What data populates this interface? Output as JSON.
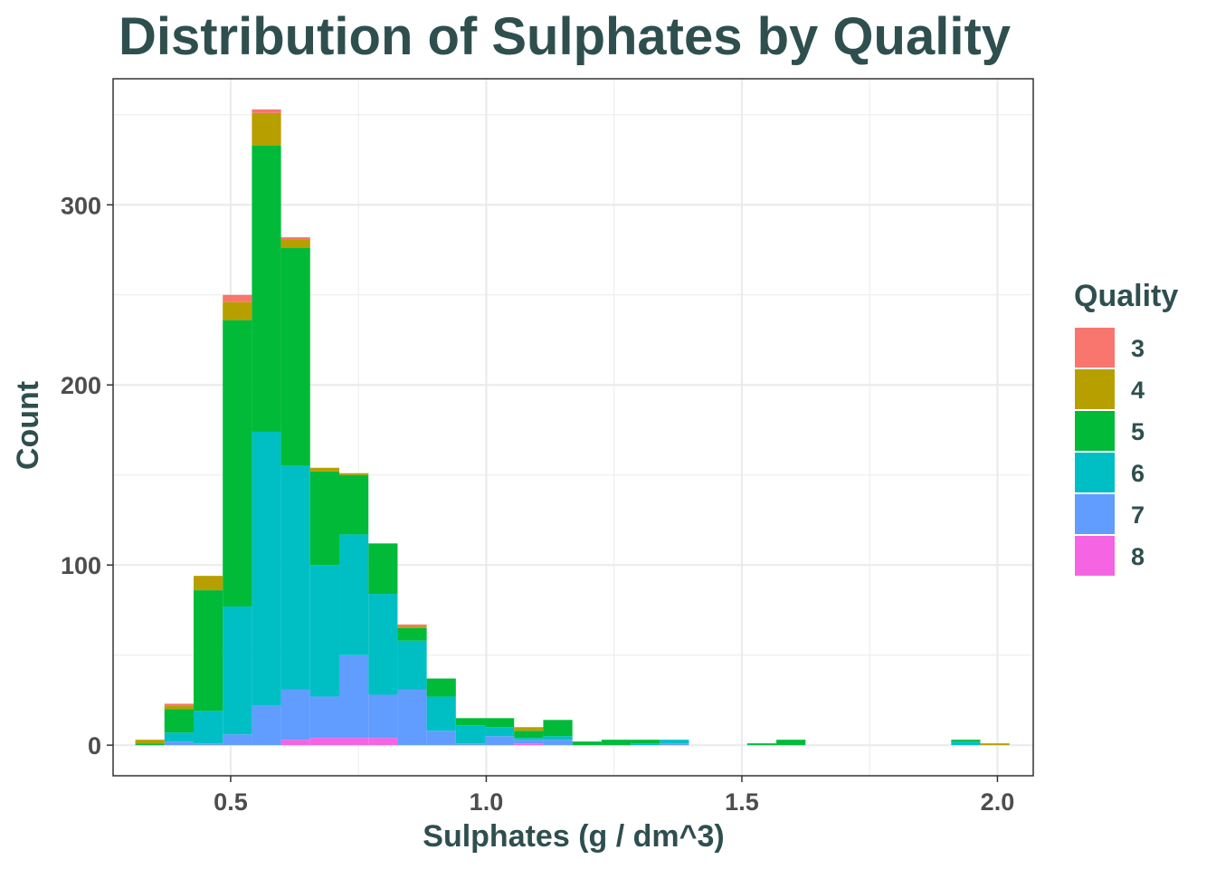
{
  "chart_data": {
    "type": "bar",
    "subtype": "stacked-histogram",
    "title": "Distribution of Sulphates by Quality",
    "xlabel": "Sulphates (g / dm^3)",
    "ylabel": "Count",
    "xlim": [
      0.27,
      2.07
    ],
    "ylim": [
      -17,
      370
    ],
    "x_ticks": [
      0.5,
      1.0,
      1.5,
      2.0
    ],
    "x_tick_labels": [
      "0.5",
      "1.0",
      "1.5",
      "2.0"
    ],
    "y_ticks": [
      0,
      100,
      200,
      300
    ],
    "y_tick_labels": [
      "0",
      "100",
      "200",
      "300"
    ],
    "grid": true,
    "bin_width": 0.057,
    "bin_centers": [
      0.342,
      0.399,
      0.456,
      0.513,
      0.57,
      0.627,
      0.684,
      0.741,
      0.798,
      0.855,
      0.912,
      0.969,
      1.026,
      1.083,
      1.14,
      1.197,
      1.254,
      1.311,
      1.368,
      1.425,
      1.482,
      1.539,
      1.596,
      1.653,
      1.71,
      1.767,
      1.824,
      1.881,
      1.938,
      1.995
    ],
    "series": [
      {
        "name": "8",
        "color": "#F564E3",
        "values": [
          0,
          0,
          0,
          0,
          0,
          3,
          4,
          4,
          4,
          0,
          0,
          0,
          0,
          1,
          0,
          0,
          0,
          0,
          0,
          0,
          0,
          0,
          0,
          0,
          0,
          0,
          0,
          0,
          0,
          0
        ]
      },
      {
        "name": "7",
        "color": "#619CFF",
        "values": [
          0,
          2,
          1,
          6,
          22,
          28,
          23,
          46,
          24,
          31,
          8,
          1,
          5,
          2,
          3,
          0,
          0,
          0,
          1,
          0,
          0,
          0,
          0,
          0,
          0,
          0,
          0,
          0,
          0,
          0
        ]
      },
      {
        "name": "6",
        "color": "#00BFC4",
        "values": [
          0,
          5,
          18,
          71,
          152,
          124,
          73,
          67,
          56,
          27,
          19,
          10,
          5,
          1,
          2,
          0,
          0,
          1,
          2,
          0,
          0,
          0,
          0,
          0,
          0,
          0,
          0,
          0,
          2,
          0
        ]
      },
      {
        "name": "5",
        "color": "#00BA38",
        "values": [
          1,
          13,
          67,
          159,
          159,
          121,
          52,
          33,
          28,
          7,
          10,
          4,
          5,
          4,
          9,
          2,
          3,
          2,
          0,
          0,
          0,
          1,
          3,
          0,
          0,
          0,
          0,
          0,
          1,
          0
        ]
      },
      {
        "name": "4",
        "color": "#B79F00",
        "values": [
          2,
          2,
          8,
          10,
          18,
          5,
          2,
          1,
          0,
          1,
          0,
          0,
          0,
          2,
          0,
          0,
          0,
          0,
          0,
          0,
          0,
          0,
          0,
          0,
          0,
          0,
          0,
          0,
          0,
          1
        ]
      },
      {
        "name": "3",
        "color": "#F8766D",
        "values": [
          0,
          1,
          0,
          4,
          2,
          1,
          0,
          0,
          0,
          1,
          0,
          0,
          0,
          0,
          0,
          0,
          0,
          0,
          0,
          0,
          0,
          0,
          0,
          0,
          0,
          0,
          0,
          0,
          0,
          0
        ]
      }
    ],
    "legend": {
      "title": "Quality",
      "placement": "right",
      "entries": [
        {
          "label": "3",
          "color": "#F8766D"
        },
        {
          "label": "4",
          "color": "#B79F00"
        },
        {
          "label": "5",
          "color": "#00BA38"
        },
        {
          "label": "6",
          "color": "#00BFC4"
        },
        {
          "label": "7",
          "color": "#619CFF"
        },
        {
          "label": "8",
          "color": "#F564E3"
        }
      ]
    }
  }
}
